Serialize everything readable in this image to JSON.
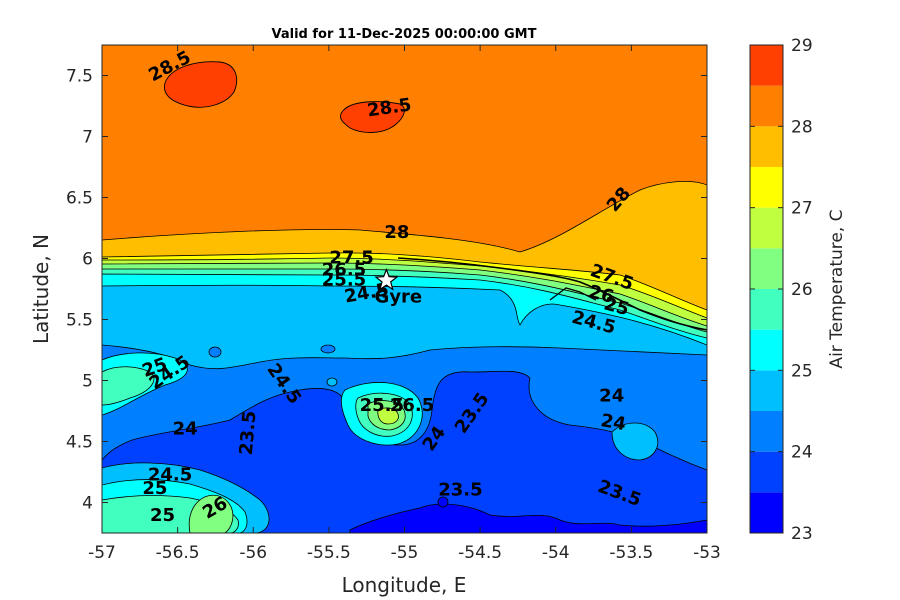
{
  "chart_data": {
    "type": "contour",
    "title": "Valid for 11-Dec-2025 00:00:00 GMT",
    "xlabel": "Longitude, E",
    "ylabel": "Latitude, N",
    "xlim": [
      -57,
      -53
    ],
    "ylim": [
      3.75,
      7.75
    ],
    "xticks": [
      -57,
      -56.5,
      -56,
      -55.5,
      -55,
      -54.5,
      -54,
      -53.5,
      -53
    ],
    "xtick_labels": [
      "-57",
      "-56.5",
      "-56",
      "-55.5",
      "-55",
      "-54.5",
      "-54",
      "-53.5",
      "-53"
    ],
    "yticks": [
      4,
      4.5,
      5,
      5.5,
      6,
      6.5,
      7,
      7.5
    ],
    "ytick_labels": [
      "4",
      "4.5",
      "5",
      "5.5",
      "6",
      "6.5",
      "7",
      "7.5"
    ],
    "colorbar": {
      "label": "Air Temperature, C",
      "min": 23,
      "max": 29,
      "levels": [
        23,
        23.5,
        24,
        24.5,
        25,
        25.5,
        26,
        26.5,
        27,
        27.5,
        28,
        28.5,
        29
      ],
      "colors": [
        "#0000ff",
        "#0040ff",
        "#0080ff",
        "#00bfff",
        "#00ffff",
        "#40ffbf",
        "#80ff80",
        "#bfff40",
        "#ffff00",
        "#ffbf00",
        "#ff8000",
        "#ff4000"
      ],
      "tick_values": [
        23,
        24,
        25,
        26,
        27,
        28,
        29
      ],
      "tick_labels": [
        "23",
        "24",
        "25",
        "26",
        "27",
        "28",
        "29"
      ]
    },
    "contour_labels": [
      {
        "text": "28.5",
        "lon": -56.55,
        "lat": 7.57,
        "angle": -28
      },
      {
        "text": "28.5",
        "lon": -55.1,
        "lat": 7.23,
        "angle": -8
      },
      {
        "text": "28",
        "lon": -53.58,
        "lat": 6.48,
        "angle": -50
      },
      {
        "text": "28",
        "lon": -55.05,
        "lat": 6.21,
        "angle": 0
      },
      {
        "text": "27.5",
        "lon": -55.35,
        "lat": 6.0,
        "angle": 0
      },
      {
        "text": "27.5",
        "lon": -53.63,
        "lat": 5.84,
        "angle": 20
      },
      {
        "text": "26.5",
        "lon": -55.4,
        "lat": 5.9,
        "angle": 0
      },
      {
        "text": "25.5",
        "lon": -55.4,
        "lat": 5.82,
        "angle": 0
      },
      {
        "text": "24.5",
        "lon": -55.25,
        "lat": 5.71,
        "angle": -10
      },
      {
        "text": "26",
        "lon": -53.7,
        "lat": 5.7,
        "angle": 15
      },
      {
        "text": "25",
        "lon": -53.6,
        "lat": 5.6,
        "angle": 15
      },
      {
        "text": "24.5",
        "lon": -53.75,
        "lat": 5.47,
        "angle": 15
      },
      {
        "text": "24.5",
        "lon": -56.55,
        "lat": 5.06,
        "angle": -35
      },
      {
        "text": "25",
        "lon": -56.65,
        "lat": 5.1,
        "angle": -20
      },
      {
        "text": "24.5",
        "lon": -55.8,
        "lat": 4.97,
        "angle": 55
      },
      {
        "text": "24",
        "lon": -56.45,
        "lat": 4.6,
        "angle": 0
      },
      {
        "text": "23.5",
        "lon": -56.03,
        "lat": 4.57,
        "angle": -85
      },
      {
        "text": "25.5",
        "lon": -55.15,
        "lat": 4.79,
        "angle": 0
      },
      {
        "text": "26.5",
        "lon": -54.95,
        "lat": 4.79,
        "angle": 0
      },
      {
        "text": "24",
        "lon": -54.8,
        "lat": 4.52,
        "angle": -55
      },
      {
        "text": "23.5",
        "lon": -54.55,
        "lat": 4.73,
        "angle": -55
      },
      {
        "text": "24",
        "lon": -53.63,
        "lat": 4.87,
        "angle": 0
      },
      {
        "text": "24",
        "lon": -53.62,
        "lat": 4.65,
        "angle": 10
      },
      {
        "text": "23.5",
        "lon": -54.63,
        "lat": 4.1,
        "angle": 0
      },
      {
        "text": "23.5",
        "lon": -53.58,
        "lat": 4.07,
        "angle": 20
      },
      {
        "text": "24.5",
        "lon": -56.55,
        "lat": 4.22,
        "angle": 0
      },
      {
        "text": "25",
        "lon": -56.65,
        "lat": 4.11,
        "angle": 0
      },
      {
        "text": "25",
        "lon": -56.6,
        "lat": 3.89,
        "angle": 0
      },
      {
        "text": "26",
        "lon": -56.25,
        "lat": 3.95,
        "angle": -30
      }
    ],
    "markers": [
      {
        "name": "Gyre",
        "lon": -55.12,
        "lat": 5.82,
        "symbol": "star"
      }
    ]
  }
}
